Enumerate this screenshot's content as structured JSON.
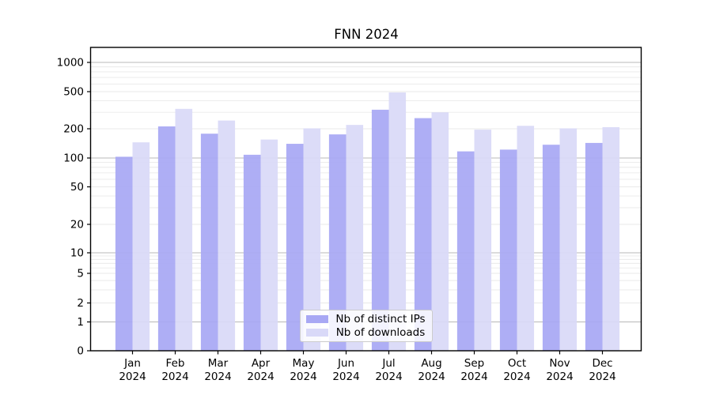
{
  "title": "FNN 2024",
  "chart_data": {
    "type": "bar",
    "title": "FNN 2024",
    "categories": [
      "Jan 2024",
      "Feb 2024",
      "Mar 2024",
      "Apr 2024",
      "May 2024",
      "Jun 2024",
      "Jul 2024",
      "Aug 2024",
      "Sep 2024",
      "Oct 2024",
      "Nov 2024",
      "Dec 2024"
    ],
    "x_months": [
      "Jan",
      "Feb",
      "Mar",
      "Apr",
      "May",
      "Jun",
      "Jul",
      "Aug",
      "Sep",
      "Oct",
      "Nov",
      "Dec"
    ],
    "x_year": "2024",
    "series": [
      {
        "name": "Nb of distinct IPs",
        "color": "#a8a8f4",
        "values": [
          103,
          212,
          178,
          108,
          140,
          175,
          320,
          260,
          117,
          122,
          137,
          143
        ]
      },
      {
        "name": "Nb of downloads",
        "color": "#d9d9f8",
        "values": [
          145,
          327,
          245,
          155,
          202,
          220,
          490,
          300,
          196,
          215,
          202,
          208
        ]
      }
    ],
    "yscale": "symlog",
    "yticks": [
      0,
      1,
      2,
      5,
      10,
      20,
      50,
      100,
      200,
      500,
      1000
    ],
    "ylim": [
      0,
      1400
    ],
    "xlabel": "",
    "ylabel": "",
    "grid": "horizontal log major+minor",
    "legend_position": "lower center"
  },
  "colors": {
    "bar_dark": "#a8a8f4",
    "bar_light": "#d9d9f8",
    "grid_major": "#b8b8b8",
    "grid_minor": "#e9e9e9",
    "spine": "#000000",
    "legend_border": "#cccccc"
  }
}
